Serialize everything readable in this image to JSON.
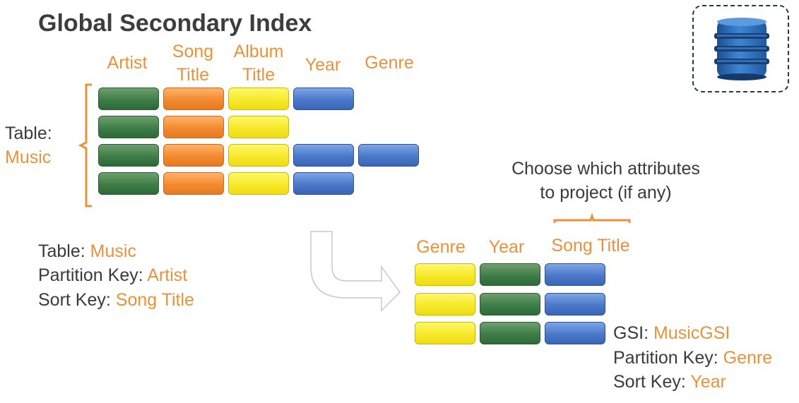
{
  "title": "Global Secondary Index",
  "table_columns": [
    "Artist",
    "Song\nTitle",
    "Album\nTitle",
    "Year",
    "Genre"
  ],
  "table_label": "Table:",
  "table_name": "Music",
  "table_rows": [
    [
      "green",
      "orange",
      "yellow",
      "blue",
      ""
    ],
    [
      "green",
      "orange",
      "yellow",
      "",
      ""
    ],
    [
      "green",
      "orange",
      "yellow",
      "blue",
      "blue"
    ],
    [
      "green",
      "orange",
      "yellow",
      "blue",
      ""
    ]
  ],
  "table_info": {
    "table_label": "Table: ",
    "table_value": "Music",
    "pk_label": "Partition Key: ",
    "pk_value": "Artist",
    "sk_label": "Sort Key: ",
    "sk_value": "Song Title"
  },
  "projection_note_line1": "Choose which attributes",
  "projection_note_line2": "to project (if any)",
  "gsi_columns": [
    "Genre",
    "Year",
    "Song Title"
  ],
  "gsi_rows": [
    [
      "yellow",
      "green",
      "blue"
    ],
    [
      "yellow",
      "green",
      "blue"
    ],
    [
      "yellow",
      "green",
      "blue"
    ]
  ],
  "gsi_info": {
    "gsi_label": "GSI: ",
    "gsi_value": "MusicGSI",
    "pk_label": "Partition Key: ",
    "pk_value": "Genre",
    "sk_label": "Sort Key: ",
    "sk_value": "Year"
  },
  "logo_icon": "dynamodb-icon",
  "colors": {
    "accent_orange": "#e8923c",
    "text_gray": "#3a3a3a"
  }
}
